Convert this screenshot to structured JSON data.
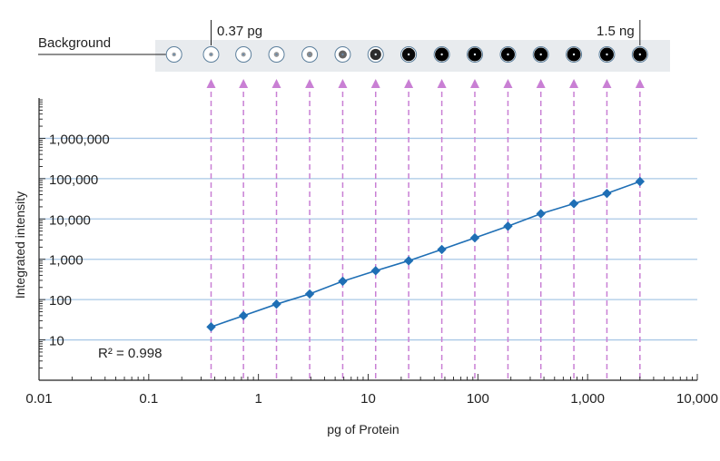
{
  "chart_data": {
    "type": "line",
    "xlabel": "pg of Protein",
    "ylabel": "Integrated intensity",
    "xscale": "log",
    "yscale": "log",
    "xlim": [
      0.01,
      10000
    ],
    "ylim": [
      1,
      10000000
    ],
    "x_tick_labels": [
      "0.01",
      "0.1",
      "1",
      "10",
      "100",
      "1,000",
      "10,000"
    ],
    "x_tick_values": [
      0.01,
      0.1,
      1,
      10,
      100,
      1000,
      10000
    ],
    "y_tick_labels": [
      "10",
      "100",
      "1,000",
      "10,000",
      "100,000",
      "1,000,000"
    ],
    "y_tick_values": [
      10,
      100,
      1000,
      10000,
      100000,
      1000000
    ],
    "series": [
      {
        "name": "Integrated intensity",
        "color": "#1f6fb5",
        "x": [
          0.37,
          0.73,
          1.46,
          2.93,
          5.86,
          11.7,
          23.4,
          46.9,
          93.8,
          188,
          375,
          750,
          1500,
          3000
        ],
        "y": [
          21,
          40,
          77,
          138,
          285,
          520,
          920,
          1750,
          3400,
          6600,
          13500,
          24000,
          43000,
          85000
        ]
      }
    ],
    "annotations": {
      "r_squared": "R² = 0.998",
      "low_label": "0.37 pg",
      "high_label": "1.5 ng",
      "background_label": "Background"
    },
    "dot_blot": {
      "background_x": 0.17,
      "spot_darkness": [
        0.05,
        0.07,
        0.1,
        0.15,
        0.22,
        0.45,
        0.75,
        0.95,
        1.0,
        1.0,
        1.0,
        1.0,
        1.0,
        1.0,
        1.0
      ]
    },
    "colors": {
      "line": "#1f6fb5",
      "marker": "#1f6fb5",
      "guide": "#c97fd4",
      "gridline": "#a9c8e6",
      "strip": "#e8ebee"
    }
  }
}
